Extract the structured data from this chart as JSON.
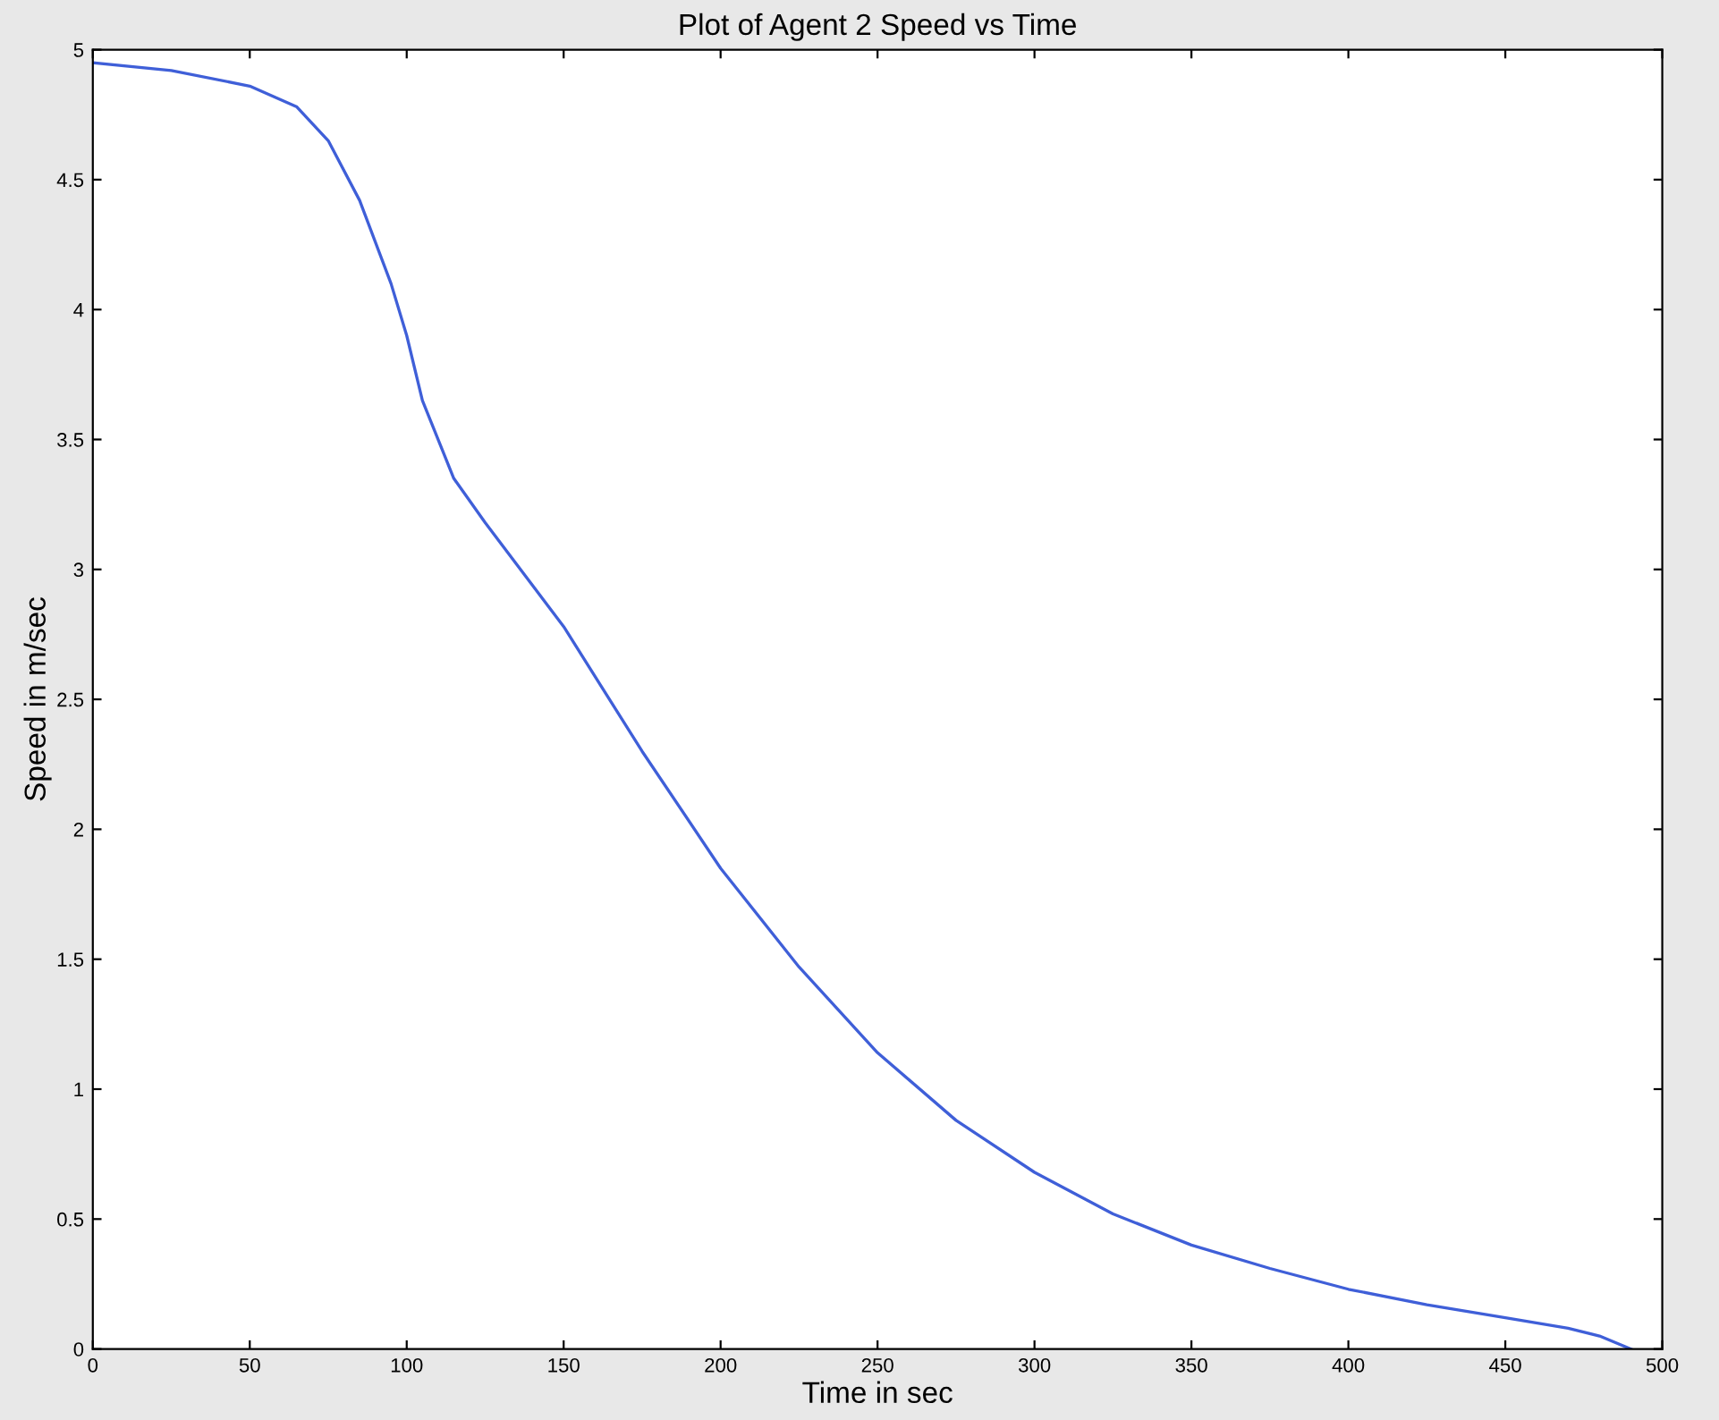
{
  "chart_data": {
    "type": "line",
    "title": "Plot of Agent 2 Speed vs Time",
    "xlabel": "Time in sec",
    "ylabel": "Speed in m/sec",
    "xlim": [
      0,
      500
    ],
    "ylim": [
      0,
      5
    ],
    "xticks": [
      0,
      50,
      100,
      150,
      200,
      250,
      300,
      350,
      400,
      450,
      500
    ],
    "yticks": [
      0,
      0.5,
      1,
      1.5,
      2,
      2.5,
      3,
      3.5,
      4,
      4.5,
      5
    ],
    "grid": false,
    "legend": false,
    "marker": "none",
    "line_style": "solid",
    "series": [
      {
        "color": "#3f5fd8",
        "x": [
          0,
          25,
          50,
          65,
          75,
          85,
          95,
          100,
          105,
          115,
          125,
          150,
          175,
          200,
          225,
          250,
          275,
          300,
          325,
          350,
          375,
          400,
          425,
          450,
          470,
          480,
          490
        ],
        "values": [
          4.95,
          4.92,
          4.86,
          4.78,
          4.65,
          4.42,
          4.1,
          3.9,
          3.65,
          3.35,
          3.18,
          2.78,
          2.3,
          1.85,
          1.47,
          1.14,
          0.88,
          0.68,
          0.52,
          0.4,
          0.31,
          0.23,
          0.17,
          0.12,
          0.08,
          0.05,
          0.0
        ]
      }
    ]
  }
}
